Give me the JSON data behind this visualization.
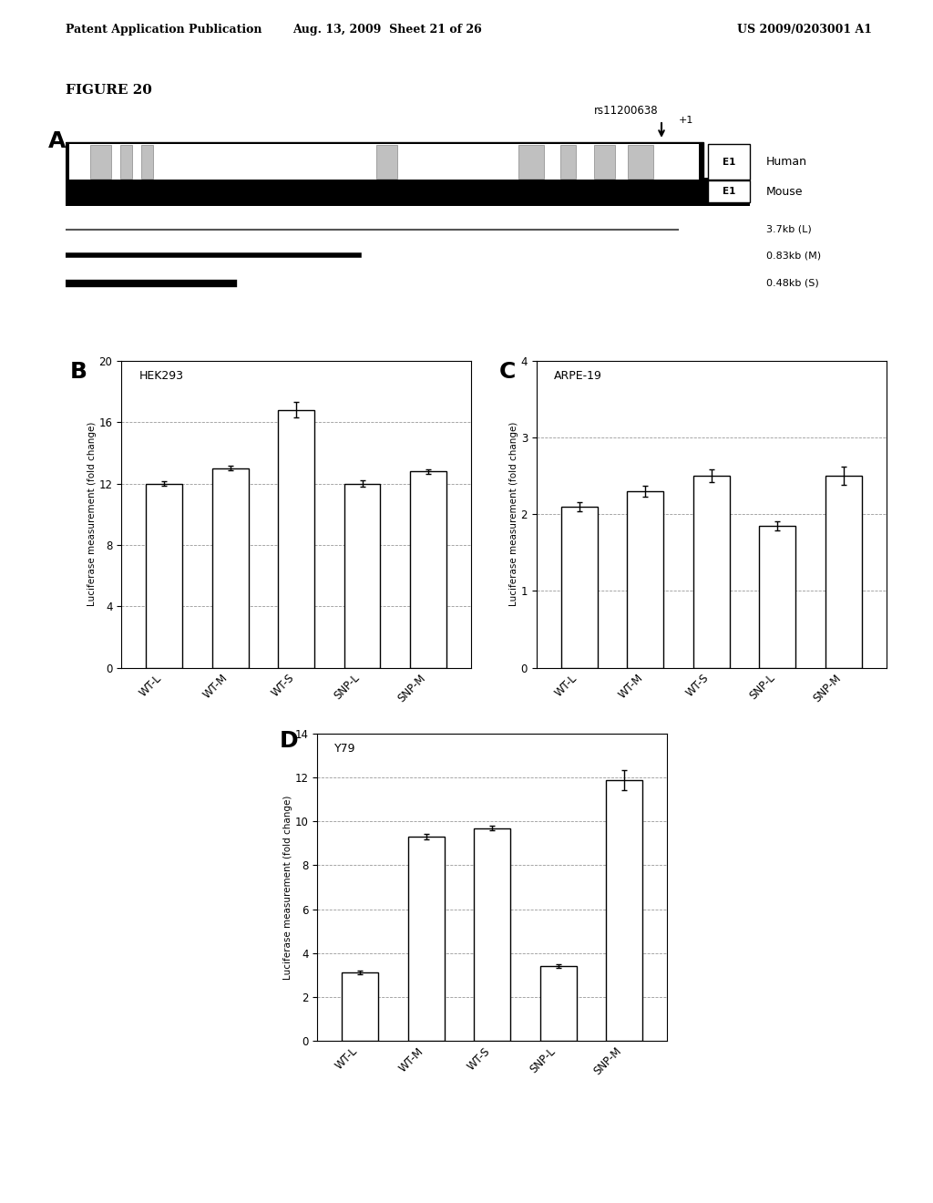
{
  "header_left": "Patent Application Publication",
  "header_mid": "Aug. 13, 2009  Sheet 21 of 26",
  "header_right": "US 2009/0203001 A1",
  "figure_label": "FIGURE 20",
  "panel_A_label": "A",
  "panel_B_label": "B",
  "panel_C_label": "C",
  "panel_D_label": "D",
  "snp_label": "rs11200638",
  "plus1_label": "+1",
  "human_label": "Human",
  "mouse_label": "Mouse",
  "E1_label": "E1",
  "line_labels": [
    "3.7kb (L)",
    "0.83kb (M)",
    "0.48kb (S)"
  ],
  "B_title": "HEK293",
  "C_title": "ARPE-19",
  "D_title": "Y79",
  "categories": [
    "WT-L",
    "WT-M",
    "WT-S",
    "SNP-L",
    "SNP-M"
  ],
  "B_values": [
    12.0,
    13.0,
    16.8,
    12.0,
    12.8
  ],
  "B_errors": [
    0.15,
    0.15,
    0.5,
    0.2,
    0.15
  ],
  "B_ylim": [
    0,
    20
  ],
  "B_yticks": [
    0,
    4,
    8,
    12,
    16,
    20
  ],
  "C_values": [
    2.1,
    2.3,
    2.5,
    1.85,
    2.5
  ],
  "C_errors": [
    0.06,
    0.07,
    0.08,
    0.06,
    0.12
  ],
  "C_ylim": [
    0,
    4
  ],
  "C_yticks": [
    0,
    1,
    2,
    3,
    4
  ],
  "D_values": [
    3.1,
    9.3,
    9.7,
    3.4,
    11.9
  ],
  "D_errors": [
    0.08,
    0.12,
    0.12,
    0.08,
    0.45
  ],
  "D_ylim": [
    0,
    14
  ],
  "D_yticks": [
    0,
    2,
    4,
    6,
    8,
    10,
    12,
    14
  ],
  "ylabel": "Luciferase measurement (fold change)",
  "bar_color": "white",
  "bar_edgecolor": "black",
  "bar_width": 0.55,
  "grid_color": "#999999",
  "background_color": "white",
  "text_color": "black"
}
